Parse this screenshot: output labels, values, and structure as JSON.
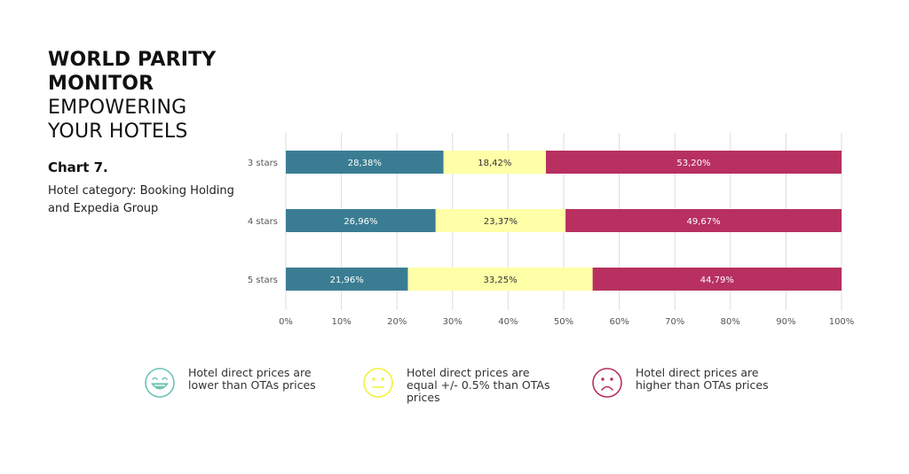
{
  "header": {
    "title_line1": "WORLD PARITY",
    "title_line2": "MONITOR",
    "subtitle_line1": "EMPOWERING",
    "subtitle_line2": "YOUR HOTELS",
    "chart_number": "Chart 7.",
    "chart_description": "Hotel category: Booking Holding and Expedia Group"
  },
  "legend": {
    "lower": "Hotel direct prices are lower than OTAs prices",
    "equal": "Hotel direct prices are equal +/- 0.5% than OTAs prices",
    "higher": "Hotel direct prices are higher than OTAs prices"
  },
  "colors": {
    "lower": "#3A7D93",
    "equal": "#FFFFA8",
    "higher": "#B73060",
    "lower_icon": "#6CC4B4",
    "equal_icon": "#F2F23A",
    "higher_icon": "#B73060",
    "grid": "#dddddd"
  },
  "icons": {
    "lower": "smiling-face-icon",
    "equal": "neutral-face-icon",
    "higher": "frowning-face-icon"
  },
  "chart_data": {
    "type": "bar",
    "orientation": "horizontal",
    "stacked": "percent",
    "categories": [
      "3 stars",
      "4 stars",
      "5 stars"
    ],
    "series": [
      {
        "key": "lower",
        "values": [
          28.38,
          26.96,
          21.96
        ],
        "labels": [
          "28,38%",
          "26,96%",
          "21,96%"
        ]
      },
      {
        "key": "equal",
        "values": [
          18.42,
          23.37,
          33.25
        ],
        "labels": [
          "18,42%",
          "23,37%",
          "33,25%"
        ]
      },
      {
        "key": "higher",
        "values": [
          53.2,
          49.67,
          44.79
        ],
        "labels": [
          "53,20%",
          "49,67%",
          "44,79%"
        ]
      }
    ],
    "xlim": [
      0,
      100
    ],
    "xticks": [
      "0%",
      "10%",
      "20%",
      "30%",
      "40%",
      "50%",
      "60%",
      "70%",
      "80%",
      "90%",
      "100%"
    ],
    "grid": true
  }
}
